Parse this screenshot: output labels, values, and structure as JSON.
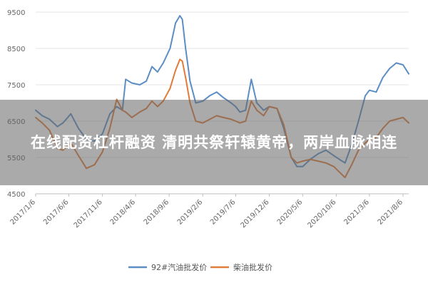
{
  "headline": "在线配资杠杆融资 清明共祭轩辕黄帝，两岸血脉相连",
  "colors": {
    "series1": "#5b8ec4",
    "series2": "#e07b39",
    "grid": "#e6e6e6",
    "axis": "#bfbfbf",
    "overlay": "rgba(100,100,100,0.55)"
  },
  "chart_data": {
    "type": "line",
    "legend_position": "bottom",
    "grid": true,
    "ylim": [
      4500,
      9500
    ],
    "y_ticks": [
      "9500",
      "8500",
      "7500",
      "6500",
      "5500",
      "4500"
    ],
    "x_ticks": [
      "2017/1/6",
      "2017/6/6",
      "2017/11/6",
      "2018/4/6",
      "2018/9/6",
      "2019/2/6",
      "2019/7/6",
      "2019/12/6",
      "2020/5/6",
      "2020/10/6",
      "2021/3/6",
      "2021/8/6"
    ],
    "xlim": [
      "2017-01-06",
      "2021-09-01"
    ],
    "series": [
      {
        "name": "92#汽油批发价",
        "color": "#5b8ec4",
        "points": [
          [
            "2017-01-06",
            6800
          ],
          [
            "2017-02-05",
            6650
          ],
          [
            "2017-03-10",
            6550
          ],
          [
            "2017-04-15",
            6350
          ],
          [
            "2017-05-10",
            6450
          ],
          [
            "2017-06-15",
            6700
          ],
          [
            "2017-07-20",
            6300
          ],
          [
            "2017-08-25",
            6000
          ],
          [
            "2017-10-01",
            5950
          ],
          [
            "2017-11-06",
            6150
          ],
          [
            "2017-12-10",
            6700
          ],
          [
            "2018-01-10",
            6900
          ],
          [
            "2018-02-05",
            6800
          ],
          [
            "2018-02-20",
            7650
          ],
          [
            "2018-03-20",
            7550
          ],
          [
            "2018-04-25",
            7500
          ],
          [
            "2018-05-25",
            7600
          ],
          [
            "2018-06-20",
            8000
          ],
          [
            "2018-07-15",
            7850
          ],
          [
            "2018-08-10",
            8100
          ],
          [
            "2018-09-10",
            8500
          ],
          [
            "2018-10-05",
            9200
          ],
          [
            "2018-10-25",
            9400
          ],
          [
            "2018-11-05",
            9300
          ],
          [
            "2018-11-20",
            8500
          ],
          [
            "2018-12-10",
            7600
          ],
          [
            "2019-01-05",
            7000
          ],
          [
            "2019-02-06",
            7050
          ],
          [
            "2019-03-10",
            7200
          ],
          [
            "2019-04-10",
            7300
          ],
          [
            "2019-05-10",
            7150
          ],
          [
            "2019-06-15",
            7000
          ],
          [
            "2019-07-06",
            6900
          ],
          [
            "2019-07-25",
            6750
          ],
          [
            "2019-08-20",
            6800
          ],
          [
            "2019-09-15",
            7650
          ],
          [
            "2019-10-10",
            7000
          ],
          [
            "2019-11-10",
            6800
          ],
          [
            "2019-12-06",
            6900
          ],
          [
            "2020-01-10",
            6850
          ],
          [
            "2020-02-10",
            6300
          ],
          [
            "2020-03-15",
            5500
          ],
          [
            "2020-04-10",
            5250
          ],
          [
            "2020-05-06",
            5250
          ],
          [
            "2020-06-10",
            5450
          ],
          [
            "2020-07-15",
            5600
          ],
          [
            "2020-08-20",
            5700
          ],
          [
            "2020-09-25",
            5550
          ],
          [
            "2020-10-20",
            5450
          ],
          [
            "2020-11-15",
            5350
          ],
          [
            "2020-12-15",
            5850
          ],
          [
            "2021-01-15",
            6500
          ],
          [
            "2021-02-15",
            7200
          ],
          [
            "2021-03-06",
            7350
          ],
          [
            "2021-04-06",
            7300
          ],
          [
            "2021-05-06",
            7700
          ],
          [
            "2021-06-06",
            7950
          ],
          [
            "2021-07-06",
            8100
          ],
          [
            "2021-08-06",
            8050
          ],
          [
            "2021-09-01",
            7800
          ]
        ]
      },
      {
        "name": "柴油批发价",
        "color": "#e07b39",
        "points": [
          [
            "2017-01-06",
            6600
          ],
          [
            "2017-02-05",
            6450
          ],
          [
            "2017-03-10",
            6250
          ],
          [
            "2017-04-15",
            5750
          ],
          [
            "2017-05-10",
            5700
          ],
          [
            "2017-06-15",
            5900
          ],
          [
            "2017-07-20",
            5550
          ],
          [
            "2017-08-25",
            5200
          ],
          [
            "2017-10-01",
            5300
          ],
          [
            "2017-11-06",
            5650
          ],
          [
            "2017-12-10",
            6300
          ],
          [
            "2018-01-10",
            7100
          ],
          [
            "2018-02-05",
            6800
          ],
          [
            "2018-02-20",
            6750
          ],
          [
            "2018-03-20",
            6600
          ],
          [
            "2018-04-25",
            6750
          ],
          [
            "2018-05-25",
            6850
          ],
          [
            "2018-06-20",
            7050
          ],
          [
            "2018-07-15",
            6900
          ],
          [
            "2018-08-10",
            7050
          ],
          [
            "2018-09-10",
            7400
          ],
          [
            "2018-10-05",
            7900
          ],
          [
            "2018-10-25",
            8200
          ],
          [
            "2018-11-05",
            8150
          ],
          [
            "2018-11-20",
            7700
          ],
          [
            "2018-12-10",
            7000
          ],
          [
            "2019-01-05",
            6500
          ],
          [
            "2019-02-06",
            6450
          ],
          [
            "2019-03-10",
            6550
          ],
          [
            "2019-04-10",
            6650
          ],
          [
            "2019-05-10",
            6600
          ],
          [
            "2019-06-15",
            6550
          ],
          [
            "2019-07-06",
            6500
          ],
          [
            "2019-07-25",
            6450
          ],
          [
            "2019-08-20",
            6500
          ],
          [
            "2019-09-15",
            7050
          ],
          [
            "2019-10-10",
            6800
          ],
          [
            "2019-11-10",
            6650
          ],
          [
            "2019-12-06",
            6900
          ],
          [
            "2020-01-10",
            6850
          ],
          [
            "2020-02-10",
            6400
          ],
          [
            "2020-03-15",
            5500
          ],
          [
            "2020-04-10",
            5350
          ],
          [
            "2020-05-06",
            5400
          ],
          [
            "2020-06-10",
            5450
          ],
          [
            "2020-07-15",
            5400
          ],
          [
            "2020-08-20",
            5350
          ],
          [
            "2020-09-25",
            5250
          ],
          [
            "2020-10-20",
            5100
          ],
          [
            "2020-11-15",
            4950
          ],
          [
            "2020-12-15",
            5300
          ],
          [
            "2021-01-15",
            5700
          ],
          [
            "2021-02-15",
            5900
          ],
          [
            "2021-03-06",
            6000
          ],
          [
            "2021-04-06",
            6050
          ],
          [
            "2021-05-06",
            6300
          ],
          [
            "2021-06-06",
            6500
          ],
          [
            "2021-07-06",
            6550
          ],
          [
            "2021-08-06",
            6600
          ],
          [
            "2021-09-01",
            6450
          ]
        ]
      }
    ]
  }
}
